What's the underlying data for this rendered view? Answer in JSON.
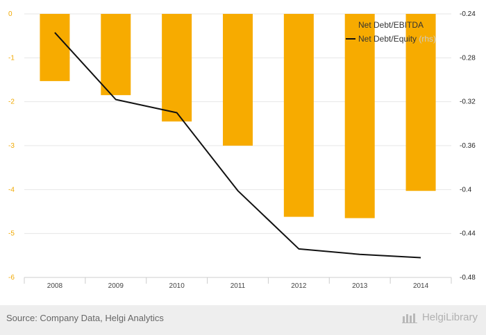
{
  "chart_data": {
    "type": "bar",
    "categories": [
      "2008",
      "2009",
      "2010",
      "2011",
      "2012",
      "2013",
      "2014"
    ],
    "series": [
      {
        "name": "Net Debt/EBITDA",
        "kind": "bar",
        "axis": "left",
        "color": "#f7ab00",
        "values": [
          -1.53,
          -1.85,
          -2.45,
          -3.0,
          -4.62,
          -4.65,
          -4.03
        ]
      },
      {
        "name": "Net Debt/Equity",
        "name_suffix": "(rhs)",
        "kind": "line",
        "axis": "right",
        "color": "#111111",
        "values": [
          -0.257,
          -0.318,
          -0.33,
          -0.401,
          -0.454,
          -0.459,
          -0.462
        ]
      }
    ],
    "y_left": {
      "ylim": [
        -6,
        0
      ],
      "ticks": [
        "0",
        "-1",
        "-2",
        "-3",
        "-4",
        "-5",
        "-6"
      ],
      "tick_color": "#f0a800"
    },
    "y_right": {
      "ylim": [
        -0.48,
        -0.24
      ],
      "ticks": [
        "-0.24",
        "-0.28",
        "-0.32",
        "-0.36",
        "-0.4",
        "-0.44",
        "-0.48"
      ]
    },
    "grid": true,
    "legend_position": "top-right"
  },
  "footer": {
    "source": "Source: Company Data, Helgi Analytics",
    "brand": "HelgiLibrary"
  }
}
